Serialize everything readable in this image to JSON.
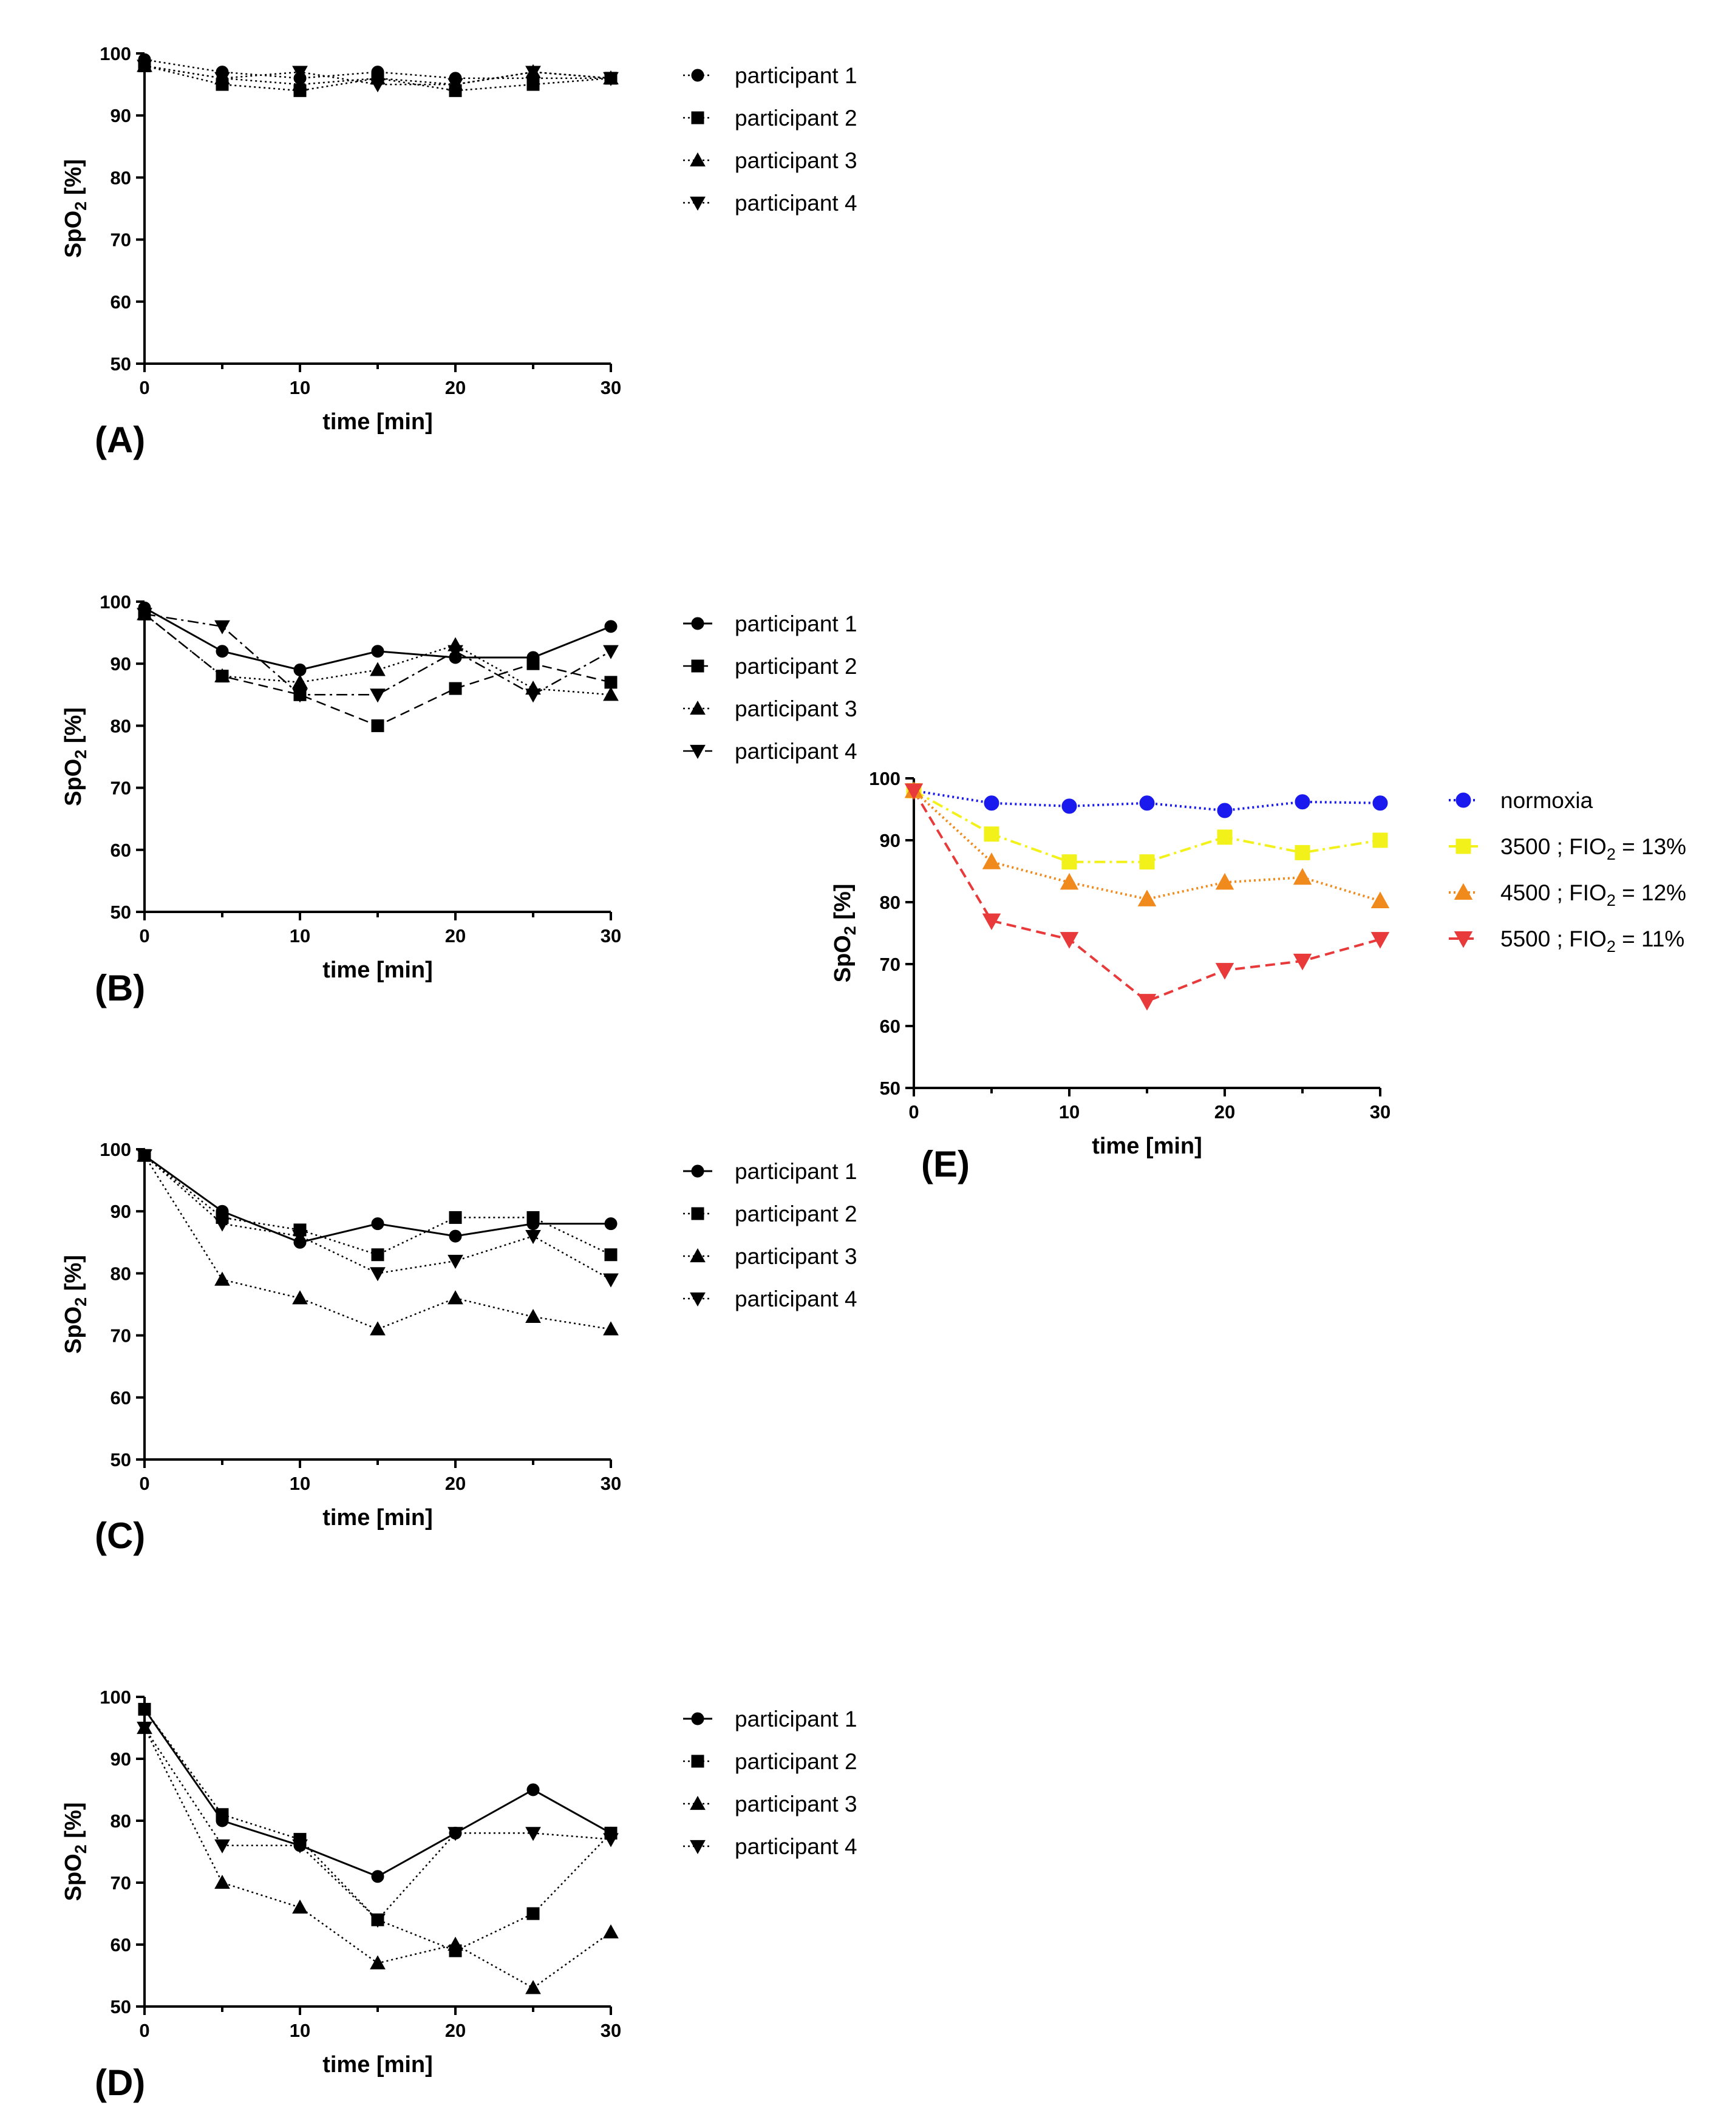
{
  "chart_data": [
    {
      "id": "A",
      "type": "line",
      "panel_label": "(A)",
      "xlabel": "time [min]",
      "ylabel_main": "SpO",
      "ylabel_sub": "2",
      "ylabel_tail": " [%]",
      "xlim": [
        0,
        30
      ],
      "ylim": [
        50,
        100
      ],
      "xticks": [
        0,
        10,
        20,
        30
      ],
      "xtick_labels": [
        "0",
        "10",
        "20",
        "30"
      ],
      "yticks": [
        50,
        60,
        70,
        80,
        90,
        100
      ],
      "ytick_labels": [
        "50",
        "60",
        "70",
        "80",
        "90",
        "100"
      ],
      "x": [
        0,
        5,
        10,
        15,
        20,
        25,
        30
      ],
      "series": [
        {
          "name": "participant 1",
          "color": "#000000",
          "marker": "circle",
          "line": "dotted",
          "values": [
            99,
            97,
            96,
            97,
            96,
            96,
            96
          ]
        },
        {
          "name": "participant 2",
          "color": "#000000",
          "marker": "square",
          "line": "dotted",
          "values": [
            98,
            95,
            94,
            96,
            94,
            95,
            96
          ]
        },
        {
          "name": "participant 3",
          "color": "#000000",
          "marker": "triangle-up",
          "line": "dotted",
          "values": [
            98,
            96,
            95,
            96,
            95,
            97,
            96
          ]
        },
        {
          "name": "participant 4",
          "color": "#000000",
          "marker": "triangle-down",
          "line": "dotted",
          "values": [
            98,
            96,
            97,
            95,
            95,
            97,
            96
          ]
        }
      ]
    },
    {
      "id": "B",
      "type": "line",
      "panel_label": "(B)",
      "xlabel": "time [min]",
      "ylabel_main": "SpO",
      "ylabel_sub": "2",
      "ylabel_tail": " [%]",
      "xlim": [
        0,
        30
      ],
      "ylim": [
        50,
        100
      ],
      "xticks": [
        0,
        10,
        20,
        30
      ],
      "xtick_labels": [
        "0",
        "10",
        "20",
        "30"
      ],
      "yticks": [
        50,
        60,
        70,
        80,
        90,
        100
      ],
      "ytick_labels": [
        "50",
        "60",
        "70",
        "80",
        "90",
        "100"
      ],
      "x": [
        0,
        5,
        10,
        15,
        20,
        25,
        30
      ],
      "series": [
        {
          "name": "participant 1",
          "color": "#000000",
          "marker": "circle",
          "line": "solid",
          "values": [
            99,
            92,
            89,
            92,
            91,
            91,
            96
          ]
        },
        {
          "name": "participant 2",
          "color": "#000000",
          "marker": "square",
          "line": "dashed",
          "values": [
            98,
            88,
            85,
            80,
            86,
            90,
            87
          ]
        },
        {
          "name": "participant 3",
          "color": "#000000",
          "marker": "triangle-up",
          "line": "dotted",
          "values": [
            98,
            88,
            87,
            89,
            93,
            86,
            85
          ]
        },
        {
          "name": "participant 4",
          "color": "#000000",
          "marker": "triangle-down",
          "line": "dash-dot",
          "values": [
            98,
            96,
            85,
            85,
            92,
            85,
            92
          ]
        }
      ]
    },
    {
      "id": "C",
      "type": "line",
      "panel_label": "(C)",
      "xlabel": "time [min]",
      "ylabel_main": "SpO",
      "ylabel_sub": "2",
      "ylabel_tail": " [%]",
      "xlim": [
        0,
        30
      ],
      "ylim": [
        50,
        100
      ],
      "xticks": [
        0,
        10,
        20,
        30
      ],
      "xtick_labels": [
        "0",
        "10",
        "20",
        "30"
      ],
      "yticks": [
        50,
        60,
        70,
        80,
        90,
        100
      ],
      "ytick_labels": [
        "50",
        "60",
        "70",
        "80",
        "90",
        "100"
      ],
      "x": [
        0,
        5,
        10,
        15,
        20,
        25,
        30
      ],
      "series": [
        {
          "name": "participant 1",
          "color": "#000000",
          "marker": "circle",
          "line": "solid",
          "values": [
            99,
            90,
            85,
            88,
            86,
            88,
            88
          ]
        },
        {
          "name": "participant 2",
          "color": "#000000",
          "marker": "square",
          "line": "dotted",
          "values": [
            99,
            89,
            87,
            83,
            89,
            89,
            83
          ]
        },
        {
          "name": "participant 3",
          "color": "#000000",
          "marker": "triangle-up",
          "line": "dotted",
          "values": [
            99,
            79,
            76,
            71,
            76,
            73,
            71
          ]
        },
        {
          "name": "participant 4",
          "color": "#000000",
          "marker": "triangle-down",
          "line": "dotted",
          "values": [
            99,
            88,
            86,
            80,
            82,
            86,
            79
          ]
        }
      ]
    },
    {
      "id": "D",
      "type": "line",
      "panel_label": "(D)",
      "xlabel": "time [min]",
      "ylabel_main": "SpO",
      "ylabel_sub": "2",
      "ylabel_tail": " [%]",
      "xlim": [
        0,
        30
      ],
      "ylim": [
        50,
        100
      ],
      "xticks": [
        0,
        10,
        20,
        30
      ],
      "xtick_labels": [
        "0",
        "10",
        "20",
        "30"
      ],
      "yticks": [
        50,
        60,
        70,
        80,
        90,
        100
      ],
      "ytick_labels": [
        "50",
        "60",
        "70",
        "80",
        "90",
        "100"
      ],
      "x": [
        0,
        5,
        10,
        15,
        20,
        25,
        30
      ],
      "series": [
        {
          "name": "participant 1",
          "color": "#000000",
          "marker": "circle",
          "line": "solid",
          "values": [
            98,
            80,
            76,
            71,
            78,
            85,
            78
          ]
        },
        {
          "name": "participant 2",
          "color": "#000000",
          "marker": "square",
          "line": "dotted",
          "values": [
            98,
            81,
            77,
            64,
            59,
            65,
            78
          ]
        },
        {
          "name": "participant 3",
          "color": "#000000",
          "marker": "triangle-up",
          "line": "dotted",
          "values": [
            95,
            70,
            66,
            57,
            60,
            53,
            62
          ]
        },
        {
          "name": "participant 4",
          "color": "#000000",
          "marker": "triangle-down",
          "line": "dotted",
          "values": [
            95,
            76,
            76,
            64,
            78,
            78,
            77
          ]
        }
      ]
    },
    {
      "id": "E",
      "type": "line",
      "panel_label": "(E)",
      "xlabel": "time [min]",
      "ylabel_main": "SpO",
      "ylabel_sub": "2",
      "ylabel_tail": " [%]",
      "xlim": [
        0,
        30
      ],
      "ylim": [
        50,
        100
      ],
      "xticks": [
        0,
        10,
        20,
        30
      ],
      "xtick_labels": [
        "0",
        "10",
        "20",
        "30"
      ],
      "yticks": [
        50,
        60,
        70,
        80,
        90,
        100
      ],
      "ytick_labels": [
        "50",
        "60",
        "70",
        "80",
        "90",
        "100"
      ],
      "x": [
        0,
        5,
        10,
        15,
        20,
        25,
        30
      ],
      "series": [
        {
          "name": "normoxia",
          "name_main": "normoxia",
          "color": "#1a1aee",
          "marker": "circle",
          "line": "dotted",
          "values": [
            98,
            96,
            95.5,
            96,
            94.8,
            96.2,
            96
          ]
        },
        {
          "name": "3500 ; FIO2 = 13%",
          "name_main": "3500 ; FIO",
          "name_sub": "2",
          "name_tail": " = 13%",
          "color": "#f2f21a",
          "marker": "square",
          "line": "dash-dot",
          "values": [
            98,
            91,
            86.5,
            86.5,
            90.5,
            88,
            90
          ]
        },
        {
          "name": "4500 ; FIO2 = 12%",
          "name_main": "4500 ; FIO",
          "name_sub": "2",
          "name_tail": " = 12%",
          "color": "#f08a1c",
          "marker": "triangle-up",
          "line": "dotted",
          "values": [
            98,
            86.5,
            83.2,
            80.5,
            83.2,
            84,
            80.2
          ]
        },
        {
          "name": "5500 ; FIO2 = 11%",
          "name_main": "5500 ; FIO",
          "name_sub": "2",
          "name_tail": " = 11%",
          "color": "#e83a3a",
          "marker": "triangle-down",
          "line": "dashed",
          "values": [
            98,
            77,
            74,
            64,
            69,
            70.5,
            74
          ]
        }
      ]
    }
  ]
}
